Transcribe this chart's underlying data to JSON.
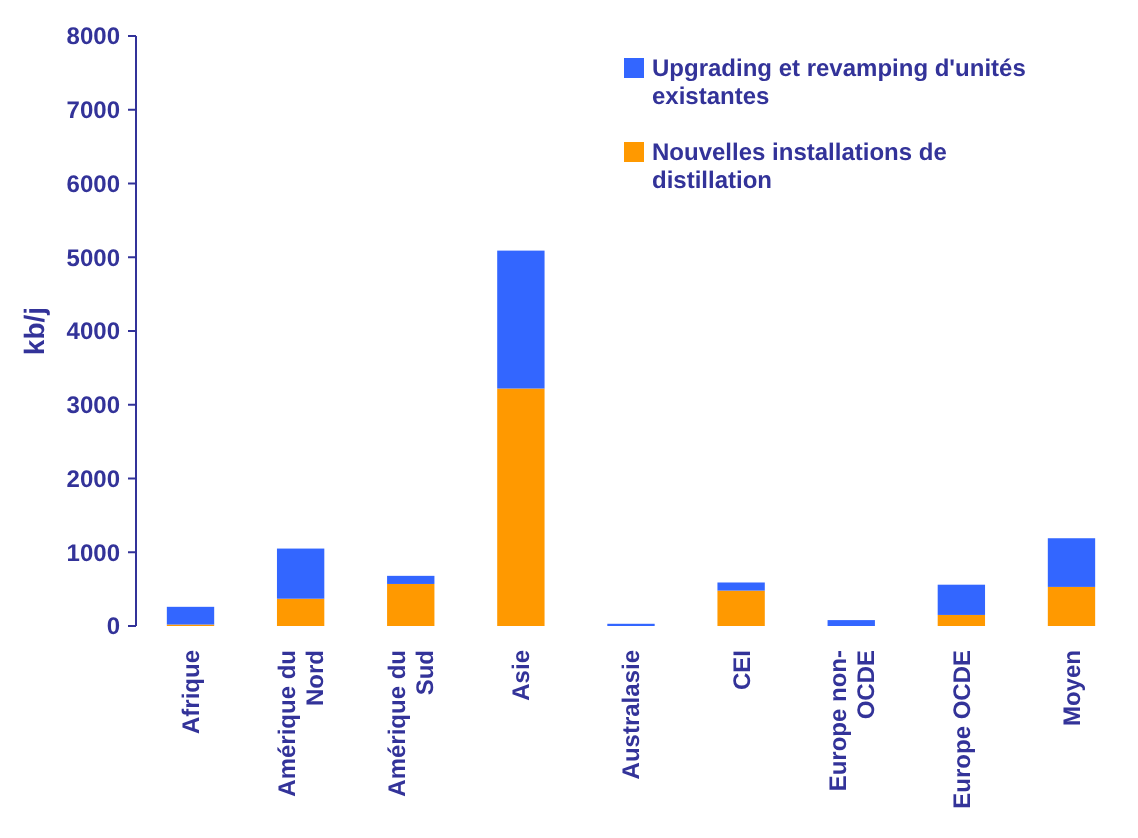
{
  "chart_data": {
    "type": "bar",
    "stacked": true,
    "ylabel": "kb/j",
    "categories": [
      "Afrique",
      "Amérique du Nord",
      "Amérique du Sud",
      "Asie",
      "Australasie",
      "CEI",
      "Europe non-OCDE",
      "Europe OCDE",
      "Moyen"
    ],
    "series": [
      {
        "name": "Nouvelles installations de distillation",
        "color": "#ff9900",
        "values": [
          20,
          370,
          570,
          3220,
          0,
          480,
          0,
          150,
          530
        ]
      },
      {
        "name": "Upgrading et revamping d'unités existantes",
        "color": "#3366ff",
        "values": [
          240,
          680,
          110,
          1870,
          30,
          110,
          80,
          410,
          660
        ]
      }
    ],
    "ylim": [
      0,
      8000
    ],
    "yticks": [
      0,
      1000,
      2000,
      3000,
      4000,
      5000,
      6000,
      7000,
      8000
    ],
    "grid": false,
    "legend": "top right"
  }
}
